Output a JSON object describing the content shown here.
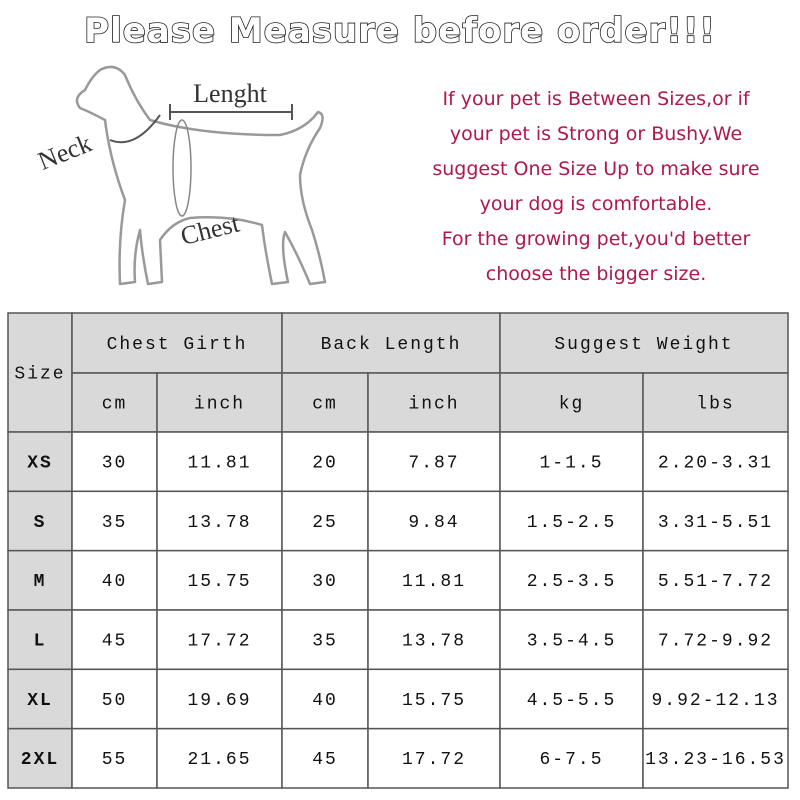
{
  "header": {
    "title": "Please Measure before order!!!"
  },
  "diagram": {
    "length_label": "Lenght",
    "neck_label": "Neck",
    "chest_label": "Chest"
  },
  "notes": [
    "If your pet is Between Sizes,or if",
    "your pet is Strong or Bushy.We",
    "suggest One Size Up to make sure",
    "your dog is comfortable.",
    "For the growing pet,you'd better",
    "choose the bigger size."
  ],
  "table": {
    "size_header": "Size",
    "groups": [
      "Chest Girth",
      "Back Length",
      "Suggest Weight"
    ],
    "subheaders": [
      "cm",
      "inch",
      "cm",
      "inch",
      "kg",
      "lbs"
    ],
    "rows": [
      [
        "XS",
        "30",
        "11.81",
        "20",
        "7.87",
        "1-1.5",
        "2.20-3.31"
      ],
      [
        "S",
        "35",
        "13.78",
        "25",
        "9.84",
        "1.5-2.5",
        "3.31-5.51"
      ],
      [
        "M",
        "40",
        "15.75",
        "30",
        "11.81",
        "2.5-3.5",
        "5.51-7.72"
      ],
      [
        "L",
        "45",
        "17.72",
        "35",
        "13.78",
        "3.5-4.5",
        "7.72-9.92"
      ],
      [
        "XL",
        "50",
        "19.69",
        "40",
        "15.75",
        "4.5-5.5",
        "9.92-12.13"
      ],
      [
        "2XL",
        "55",
        "21.65",
        "45",
        "17.72",
        "6-7.5",
        "13.23-16.53"
      ]
    ]
  }
}
